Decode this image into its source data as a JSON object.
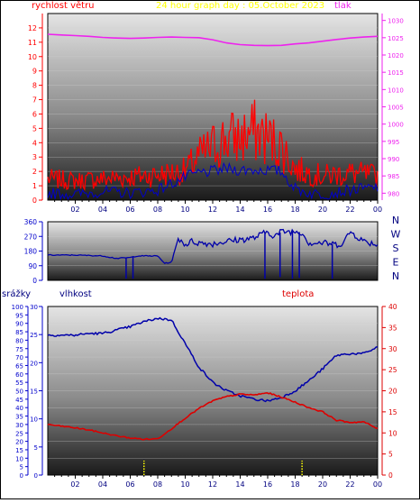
{
  "header": {
    "wind_speed_label": "rychlost větru",
    "title": "24 hour graph day : 05.October 2023",
    "pressure_label": "tlak"
  },
  "colors": {
    "wind": "#ff0000",
    "wind_avg": "#0000cc",
    "pressure": "#ee22ee",
    "direction": "#0000aa",
    "humidity": "#0000aa",
    "temperature": "#dd0000",
    "rain_marks": "#ffff00",
    "title": "#ffff00",
    "wind_axis": "#ff0000",
    "rain_axis": "#0000cc",
    "frame": "#000000"
  },
  "x_tick_labels": [
    "02",
    "04",
    "06",
    "08",
    "10",
    "12",
    "14",
    "16",
    "18",
    "20",
    "22",
    "00"
  ],
  "chart_data": [
    {
      "type": "line",
      "name": "wind_and_pressure",
      "x_range": [
        0,
        24
      ],
      "wind_axis": {
        "range": [
          0,
          13
        ],
        "ticks": [
          "0",
          "1",
          "2",
          "3",
          "4",
          "5",
          "6",
          "7",
          "8",
          "9",
          "10",
          "11",
          "12"
        ],
        "label": "rychlost větru"
      },
      "pressure_axis": {
        "range": [
          978,
          1032
        ],
        "ticks": [
          "980",
          "985",
          "990",
          "995",
          "1000",
          "1005",
          "1010",
          "1015",
          "1020",
          "1025",
          "1030"
        ],
        "label": "tlak"
      },
      "wind_gust_envelope": [
        [
          0,
          2.2
        ],
        [
          2,
          2.0
        ],
        [
          4,
          2.2
        ],
        [
          6,
          2.4
        ],
        [
          8,
          2.6
        ],
        [
          10,
          3.0
        ],
        [
          11,
          4.5
        ],
        [
          12,
          5.5
        ],
        [
          13,
          6.4
        ],
        [
          14,
          6.4
        ],
        [
          15,
          7.1
        ],
        [
          16,
          6.4
        ],
        [
          17,
          5.5
        ],
        [
          18,
          3.2
        ],
        [
          19,
          2.8
        ],
        [
          20,
          2.5
        ],
        [
          22,
          2.8
        ],
        [
          24,
          2.5
        ]
      ],
      "wind_average": [
        [
          0,
          0.5
        ],
        [
          2,
          0.4
        ],
        [
          4,
          0.6
        ],
        [
          6,
          0.5
        ],
        [
          8,
          0.7
        ],
        [
          10,
          1.6
        ],
        [
          11,
          1.9
        ],
        [
          12,
          2.0
        ],
        [
          13,
          2.2
        ],
        [
          14,
          2.1
        ],
        [
          15,
          2.1
        ],
        [
          16,
          2.1
        ],
        [
          17,
          2.0
        ],
        [
          18,
          0.8
        ],
        [
          19,
          0.5
        ],
        [
          20,
          0.4
        ],
        [
          22,
          0.7
        ],
        [
          24,
          0.9
        ]
      ],
      "pressure": [
        [
          0,
          1026.0
        ],
        [
          1,
          1025.8
        ],
        [
          2,
          1025.6
        ],
        [
          3,
          1025.4
        ],
        [
          4,
          1025.1
        ],
        [
          5,
          1024.9
        ],
        [
          6,
          1024.8
        ],
        [
          7,
          1024.9
        ],
        [
          8,
          1025.1
        ],
        [
          9,
          1025.2
        ],
        [
          10,
          1025.1
        ],
        [
          11,
          1025.0
        ],
        [
          12,
          1024.4
        ],
        [
          13,
          1023.5
        ],
        [
          14,
          1023.0
        ],
        [
          15,
          1022.8
        ],
        [
          16,
          1022.7
        ],
        [
          17,
          1022.8
        ],
        [
          18,
          1023.2
        ],
        [
          19,
          1023.5
        ],
        [
          20,
          1024.0
        ],
        [
          21,
          1024.5
        ],
        [
          22,
          1024.9
        ],
        [
          23,
          1025.2
        ],
        [
          24,
          1025.4
        ]
      ]
    },
    {
      "type": "line",
      "name": "wind_direction",
      "x_range": [
        0,
        24
      ],
      "y_range": [
        0,
        360
      ],
      "ticks": [
        "0",
        "90",
        "180",
        "270",
        "360"
      ],
      "compass_labels": [
        "N",
        "W",
        "S",
        "E",
        "N"
      ],
      "values": [
        [
          0,
          155
        ],
        [
          2,
          155
        ],
        [
          4,
          150
        ],
        [
          5,
          135
        ],
        [
          6,
          140
        ],
        [
          6.5,
          150
        ],
        [
          8,
          150
        ],
        [
          8.5,
          105
        ],
        [
          9,
          110
        ],
        [
          9.5,
          260
        ],
        [
          10,
          220
        ],
        [
          10.5,
          240
        ],
        [
          11,
          230
        ],
        [
          12,
          225
        ],
        [
          13,
          240
        ],
        [
          14,
          250
        ],
        [
          15,
          260
        ],
        [
          15.5,
          280
        ],
        [
          16,
          300
        ],
        [
          16.5,
          270
        ],
        [
          17,
          300
        ],
        [
          18,
          300
        ],
        [
          18.5,
          295
        ],
        [
          19,
          230
        ],
        [
          20,
          230
        ],
        [
          21,
          220
        ],
        [
          21.5,
          230
        ],
        [
          22,
          300
        ],
        [
          23,
          240
        ],
        [
          24,
          220
        ]
      ],
      "drops": [
        [
          5.7,
          10
        ],
        [
          6.2,
          10
        ],
        [
          15.8,
          10
        ],
        [
          16.9,
          20
        ],
        [
          17.8,
          10
        ],
        [
          18.3,
          15
        ],
        [
          20.7,
          10
        ]
      ]
    },
    {
      "type": "line",
      "name": "humidity_temperature_rain",
      "x_range": [
        0,
        24
      ],
      "rain_axis": {
        "range": [
          0,
          100
        ],
        "ticks": [
          "0",
          "5",
          "10",
          "15",
          "20",
          "25",
          "30",
          "35",
          "40",
          "45",
          "50",
          "55",
          "60",
          "65",
          "70",
          "75",
          "80",
          "85",
          "90",
          "95",
          "100"
        ],
        "label": "srážky"
      },
      "humidity_axis": {
        "range": [
          0,
          30
        ],
        "ticks": [
          "0",
          "5",
          "10",
          "15",
          "20",
          "25",
          "30"
        ],
        "label": "vlhkost"
      },
      "temperature_axis": {
        "range": [
          0,
          40
        ],
        "ticks": [
          "0",
          "5",
          "10",
          "15",
          "20",
          "25",
          "30",
          "35",
          "40"
        ],
        "label": "teplota"
      },
      "humidity": [
        [
          0,
          83
        ],
        [
          1,
          83
        ],
        [
          2,
          83
        ],
        [
          3,
          84
        ],
        [
          4,
          84
        ],
        [
          5,
          86
        ],
        [
          6,
          88
        ],
        [
          7,
          91
        ],
        [
          8,
          93
        ],
        [
          9,
          92
        ],
        [
          10,
          78
        ],
        [
          11,
          64
        ],
        [
          12,
          55
        ],
        [
          13,
          50
        ],
        [
          14,
          47
        ],
        [
          15,
          45
        ],
        [
          16,
          44
        ],
        [
          17,
          46
        ],
        [
          18,
          50
        ],
        [
          19,
          56
        ],
        [
          20,
          63
        ],
        [
          21,
          71
        ],
        [
          22,
          72
        ],
        [
          23,
          72
        ],
        [
          24,
          76
        ]
      ],
      "temperature": [
        [
          0,
          12.0
        ],
        [
          1,
          11.6
        ],
        [
          2,
          11.2
        ],
        [
          3,
          10.7
        ],
        [
          4,
          10.0
        ],
        [
          5,
          9.3
        ],
        [
          6,
          8.8
        ],
        [
          7,
          8.5
        ],
        [
          8,
          8.6
        ],
        [
          9,
          11.0
        ],
        [
          10,
          13.5
        ],
        [
          11,
          15.8
        ],
        [
          12,
          17.6
        ],
        [
          13,
          18.6
        ],
        [
          14,
          19.2
        ],
        [
          15,
          19.0
        ],
        [
          16,
          19.5
        ],
        [
          17,
          18.5
        ],
        [
          18,
          17.3
        ],
        [
          19,
          16.0
        ],
        [
          20,
          15.0
        ],
        [
          21,
          13.0
        ],
        [
          22,
          12.5
        ],
        [
          23,
          12.6
        ],
        [
          24,
          11.0
        ]
      ],
      "rain_marks_x": [
        7.0,
        18.5
      ]
    }
  ]
}
